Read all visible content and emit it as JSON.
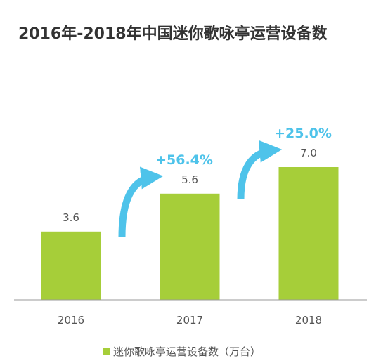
{
  "title": "2016年-2018年中国迷你歌咏亭运营设备数",
  "colors": {
    "bar": "#a6ce39",
    "growth": "#4ec3ea",
    "axis": "#999999",
    "text": "#555555"
  },
  "chart_data": {
    "type": "bar",
    "categories": [
      "2016",
      "2017",
      "2018"
    ],
    "series": [
      {
        "name": "迷你歌咏亭运营设备数（万台）",
        "values": [
          3.6,
          5.6,
          7.0
        ]
      }
    ],
    "data_labels": [
      "3.6",
      "5.6",
      "7.0"
    ],
    "growth_labels": [
      "+56.4%",
      "+25.0%"
    ],
    "ylim": [
      0,
      10
    ],
    "grid": false,
    "legend_position": "bottom-center"
  }
}
